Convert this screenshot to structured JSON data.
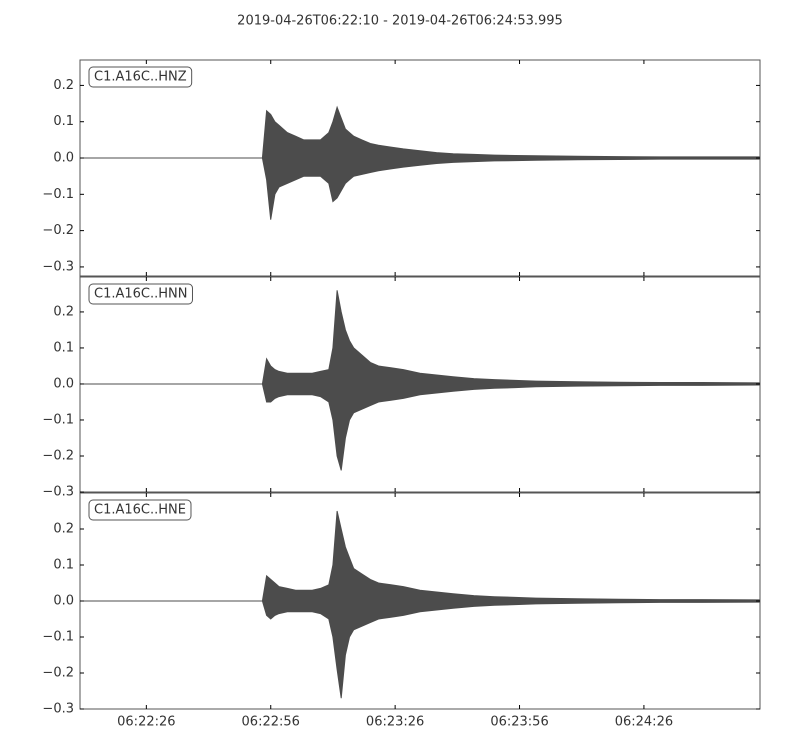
{
  "chart_data": {
    "type": "waveform",
    "title": "2019-04-26T06:22:10  -  2019-04-26T06:24:53.995",
    "xlim": [
      0,
      163.995
    ],
    "xticks": [
      {
        "value": 16,
        "label": "06:22:26"
      },
      {
        "value": 46,
        "label": "06:22:56"
      },
      {
        "value": 76,
        "label": "06:23:26"
      },
      {
        "value": 106,
        "label": "06:23:56"
      },
      {
        "value": 136,
        "label": "06:24:26"
      }
    ],
    "x": [
      0,
      44,
      45,
      46,
      47,
      48,
      50,
      52,
      54,
      56,
      58,
      60,
      61,
      62,
      63,
      64,
      65,
      66,
      68,
      70,
      72,
      75,
      78,
      82,
      86,
      90,
      95,
      100,
      105,
      110,
      120,
      130,
      140,
      150,
      164
    ],
    "panels": [
      {
        "name": "C1.A16C..HNZ",
        "color": "#4c4c4c",
        "ylim": [
          -0.325,
          0.27
        ],
        "yticks": [
          0.2,
          0.1,
          {
            "value": 0,
            "label": "0.0"
          },
          {
            "value": -0.1,
            "label": "−0.1"
          },
          {
            "value": -0.2,
            "label": "−0.2"
          },
          {
            "value": -0.3,
            "label": "−0.3"
          }
        ],
        "max": [
          0,
          0,
          0.13,
          0.12,
          0.1,
          0.09,
          0.07,
          0.06,
          0.05,
          0.05,
          0.05,
          0.07,
          0.1,
          0.14,
          0.11,
          0.08,
          0.07,
          0.06,
          0.05,
          0.04,
          0.035,
          0.03,
          0.025,
          0.02,
          0.015,
          0.012,
          0.01,
          0.008,
          0.007,
          0.006,
          0.005,
          0.004,
          0.003,
          0.003,
          0.003
        ],
        "min": [
          0,
          0,
          -0.06,
          -0.17,
          -0.1,
          -0.08,
          -0.07,
          -0.06,
          -0.05,
          -0.05,
          -0.05,
          -0.07,
          -0.12,
          -0.11,
          -0.09,
          -0.07,
          -0.06,
          -0.05,
          -0.045,
          -0.04,
          -0.035,
          -0.03,
          -0.025,
          -0.02,
          -0.015,
          -0.012,
          -0.01,
          -0.008,
          -0.007,
          -0.006,
          -0.005,
          -0.004,
          -0.003,
          -0.003,
          -0.003
        ]
      },
      {
        "name": "C1.A16C..HNN",
        "color": "#4c4c4c",
        "ylim": [
          -0.3,
          0.297
        ],
        "yticks": [
          0.2,
          0.1,
          {
            "value": 0,
            "label": "0.0"
          },
          {
            "value": -0.1,
            "label": "−0.1"
          },
          {
            "value": -0.2,
            "label": "−0.2"
          },
          {
            "value": -0.3,
            "label": "−0.3"
          }
        ],
        "max": [
          0,
          0,
          0.07,
          0.05,
          0.04,
          0.035,
          0.03,
          0.03,
          0.03,
          0.03,
          0.035,
          0.04,
          0.1,
          0.26,
          0.2,
          0.15,
          0.12,
          0.1,
          0.08,
          0.06,
          0.05,
          0.045,
          0.04,
          0.03,
          0.025,
          0.02,
          0.015,
          0.012,
          0.01,
          0.008,
          0.006,
          0.005,
          0.004,
          0.004,
          0.003
        ],
        "min": [
          0,
          0,
          -0.05,
          -0.05,
          -0.04,
          -0.035,
          -0.03,
          -0.03,
          -0.03,
          -0.03,
          -0.035,
          -0.05,
          -0.1,
          -0.2,
          -0.24,
          -0.15,
          -0.1,
          -0.08,
          -0.07,
          -0.06,
          -0.05,
          -0.045,
          -0.04,
          -0.03,
          -0.025,
          -0.02,
          -0.015,
          -0.012,
          -0.01,
          -0.008,
          -0.006,
          -0.005,
          -0.004,
          -0.004,
          -0.003
        ]
      },
      {
        "name": "C1.A16C..HNE",
        "color": "#4c4c4c",
        "ylim": [
          -0.3,
          0.3
        ],
        "yticks": [
          0.2,
          0.1,
          {
            "value": 0,
            "label": "0.0"
          },
          {
            "value": -0.1,
            "label": "−0.1"
          },
          {
            "value": -0.2,
            "label": "−0.2"
          },
          {
            "value": -0.3,
            "label": "−0.3"
          }
        ],
        "max": [
          0,
          0,
          0.07,
          0.06,
          0.05,
          0.04,
          0.035,
          0.03,
          0.03,
          0.03,
          0.035,
          0.045,
          0.1,
          0.25,
          0.2,
          0.15,
          0.12,
          0.09,
          0.075,
          0.06,
          0.05,
          0.045,
          0.04,
          0.03,
          0.025,
          0.02,
          0.015,
          0.012,
          0.01,
          0.008,
          0.006,
          0.005,
          0.004,
          0.004,
          0.003
        ],
        "min": [
          0,
          0,
          -0.04,
          -0.05,
          -0.04,
          -0.035,
          -0.03,
          -0.03,
          -0.03,
          -0.03,
          -0.035,
          -0.05,
          -0.1,
          -0.19,
          -0.27,
          -0.15,
          -0.1,
          -0.08,
          -0.07,
          -0.06,
          -0.05,
          -0.045,
          -0.04,
          -0.03,
          -0.025,
          -0.02,
          -0.015,
          -0.012,
          -0.01,
          -0.008,
          -0.006,
          -0.005,
          -0.004,
          -0.004,
          -0.003
        ]
      }
    ]
  }
}
